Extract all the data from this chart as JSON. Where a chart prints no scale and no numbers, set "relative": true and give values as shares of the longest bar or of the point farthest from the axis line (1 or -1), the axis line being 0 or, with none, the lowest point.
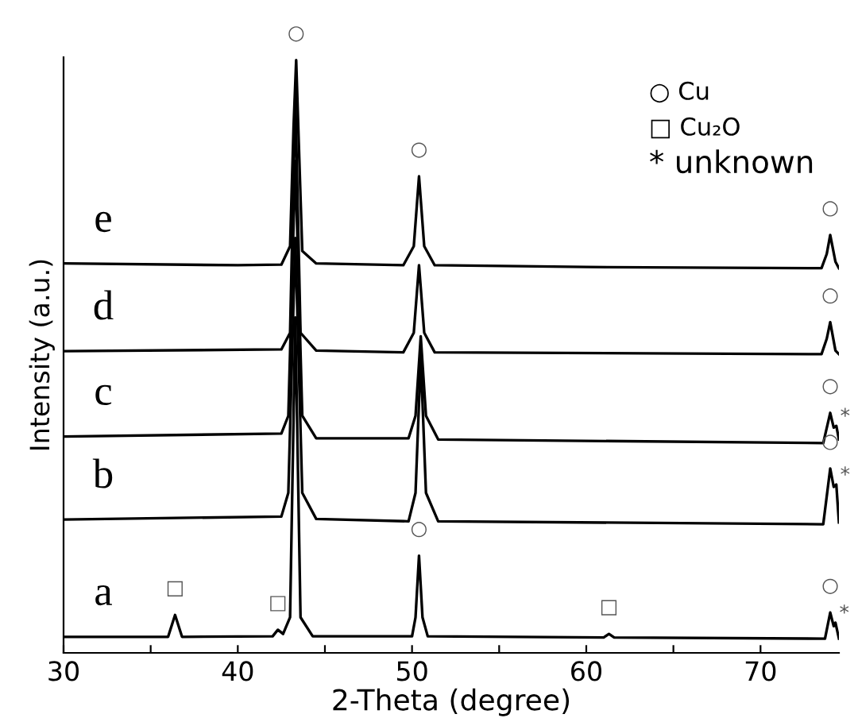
{
  "chart_data": {
    "type": "line",
    "relative": true,
    "xlabel": "2-Theta (degree)",
    "ylabel": "Intensity (a.u.)",
    "xlim": [
      30,
      74.5
    ],
    "xticks": [
      30,
      {
        "value": 35,
        "label": null
      },
      40,
      {
        "value": 45,
        "label": null
      },
      50,
      {
        "value": 55,
        "label": null
      },
      60,
      {
        "value": 65,
        "label": null
      },
      70
    ],
    "grid": false,
    "legend": false,
    "marker": "none",
    "line_style": "solid",
    "tick_labels": "x",
    "series": [
      {
        "name": "e",
        "color": "#000000",
        "x": [
          30,
          40,
          42.5,
          43.0,
          43.2,
          43.35,
          43.5,
          43.7,
          44.5,
          49.5,
          50.1,
          50.4,
          50.7,
          51.3,
          60,
          73.5,
          73.8,
          74.0,
          74.3,
          74.5
        ],
        "values": [
          0.657,
          0.654,
          0.655,
          0.686,
          0.887,
          1.0,
          0.861,
          0.678,
          0.657,
          0.654,
          0.686,
          0.804,
          0.686,
          0.654,
          0.651,
          0.649,
          0.673,
          0.705,
          0.66,
          0.649
        ]
      },
      {
        "name": "d",
        "color": "#000000",
        "x": [
          30,
          42.5,
          43.0,
          43.3,
          43.6,
          44.5,
          49.5,
          50.1,
          50.4,
          50.7,
          51.3,
          73.5,
          73.8,
          74.0,
          74.3,
          74.5
        ],
        "values": [
          0.509,
          0.512,
          0.54,
          0.94,
          0.54,
          0.51,
          0.507,
          0.54,
          0.654,
          0.54,
          0.507,
          0.504,
          0.53,
          0.558,
          0.51,
          0.504
        ]
      },
      {
        "name": "c",
        "color": "#000000",
        "x": [
          30,
          42.5,
          42.9,
          43.3,
          43.7,
          44.5,
          49.8,
          50.2,
          50.5,
          50.8,
          51.5,
          73.6,
          74.0,
          74.2,
          74.35,
          74.5
        ],
        "values": [
          0.365,
          0.37,
          0.4,
          0.83,
          0.4,
          0.362,
          0.362,
          0.4,
          0.534,
          0.4,
          0.36,
          0.354,
          0.405,
          0.38,
          0.383,
          0.36
        ]
      },
      {
        "name": "b",
        "color": "#000000",
        "x": [
          30,
          42.5,
          42.9,
          43.3,
          43.7,
          44.5,
          49.8,
          50.2,
          50.5,
          50.8,
          51.5,
          73.6,
          74.0,
          74.2,
          74.35,
          74.5
        ],
        "values": [
          0.225,
          0.23,
          0.27,
          0.7,
          0.27,
          0.226,
          0.222,
          0.27,
          0.499,
          0.27,
          0.222,
          0.217,
          0.311,
          0.28,
          0.284,
          0.22
        ]
      },
      {
        "name": "a",
        "color": "#000000",
        "x": [
          30,
          36.0,
          36.4,
          36.8,
          42.0,
          42.3,
          42.6,
          43.0,
          43.3,
          43.6,
          44.3,
          50.0,
          50.2,
          50.4,
          50.6,
          50.9,
          61.0,
          61.3,
          61.6,
          73.7,
          74.0,
          74.2,
          74.3,
          74.5
        ],
        "values": [
          0.027,
          0.027,
          0.064,
          0.027,
          0.028,
          0.039,
          0.032,
          0.06,
          0.566,
          0.06,
          0.028,
          0.028,
          0.06,
          0.164,
          0.06,
          0.028,
          0.026,
          0.032,
          0.026,
          0.024,
          0.068,
          0.045,
          0.051,
          0.024
        ]
      }
    ],
    "annotations": [
      {
        "text": "○",
        "x": 43.35,
        "y": 1.0
      },
      {
        "text": "○",
        "x": 50.4,
        "y": 0.804
      },
      {
        "text": "○",
        "x": 74.0,
        "y": 0.705
      },
      {
        "text": "○",
        "x": 74.0,
        "y": 0.558
      },
      {
        "text": "○",
        "x": 74.0,
        "y": 0.405
      },
      {
        "text": "○",
        "x": 74.0,
        "y": 0.311
      },
      {
        "text": "○",
        "x": 50.4,
        "y": 0.164
      },
      {
        "text": "○",
        "x": 74.0,
        "y": 0.068
      },
      {
        "text": "□",
        "x": 36.4,
        "y": 0.064
      },
      {
        "text": "□",
        "x": 42.3,
        "y": 0.039
      },
      {
        "text": "□",
        "x": 61.3,
        "y": 0.032
      },
      {
        "text": "*",
        "x": 74.35,
        "y": 0.383
      },
      {
        "text": "*",
        "x": 74.35,
        "y": 0.284
      },
      {
        "text": "*",
        "x": 74.3,
        "y": 0.051
      },
      "○ Cu",
      "□ Cu₂O",
      "* unknown"
    ]
  }
}
